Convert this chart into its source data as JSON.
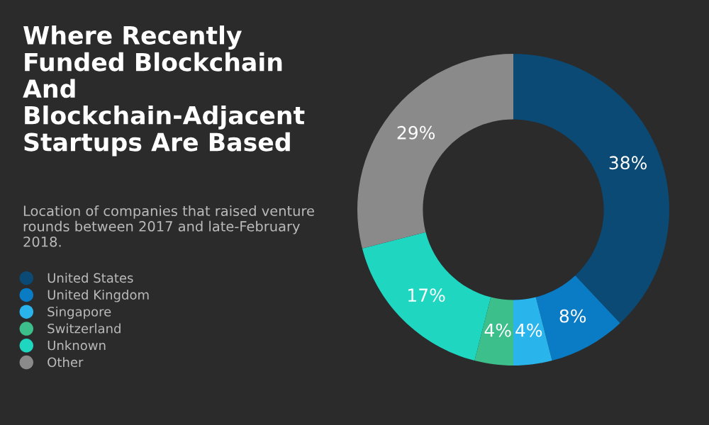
{
  "chart_data": {
    "type": "donut",
    "title": "Where Recently Funded Blockchain And Blockchain-Adjacent Startups Are Based",
    "subtitle": "Location of companies that raised venture rounds between 2017 and late-February 2018.",
    "categories": [
      "United States",
      "United Kingdom",
      "Singapore",
      "Switzerland",
      "Unknown",
      "Other"
    ],
    "values": [
      38,
      8,
      4,
      4,
      17,
      29
    ],
    "value_labels": [
      "38%",
      "8%",
      "4%",
      "4%",
      "17%",
      "29%"
    ],
    "colors": [
      "#0b4a75",
      "#0a7cc6",
      "#29b5ec",
      "#3cbf8a",
      "#1fd6c0",
      "#8a8a8a"
    ],
    "legend": "left"
  }
}
